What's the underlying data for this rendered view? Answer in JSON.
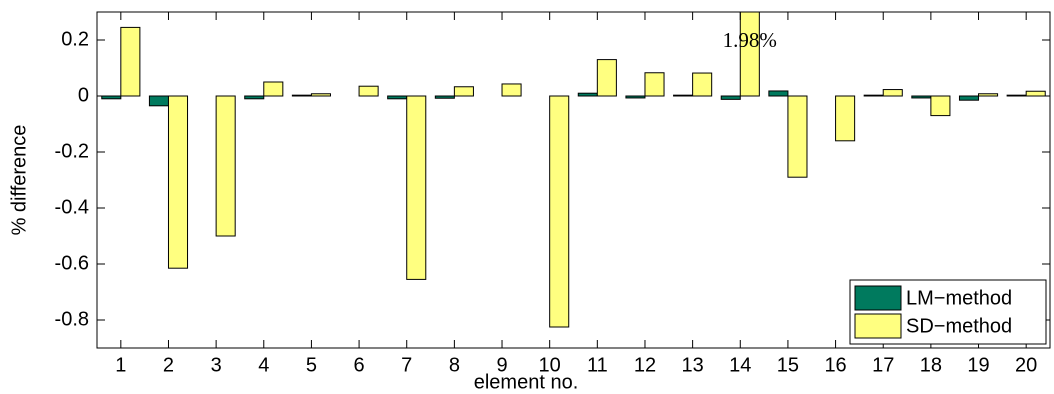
{
  "chart_data": {
    "type": "bar",
    "xlabel": "element no.",
    "ylabel": "% difference",
    "categories": [
      "1",
      "2",
      "3",
      "4",
      "5",
      "6",
      "7",
      "8",
      "9",
      "10",
      "11",
      "12",
      "13",
      "14",
      "15",
      "16",
      "17",
      "18",
      "19",
      "20"
    ],
    "series": [
      {
        "name": "LM−method",
        "color": "#007a5e",
        "values": [
          -0.01,
          -0.035,
          0,
          -0.01,
          0.003,
          0,
          -0.01,
          -0.008,
          0,
          0,
          0.01,
          -0.007,
          0.003,
          -0.012,
          0.018,
          0,
          0.003,
          -0.007,
          -0.015,
          0.003
        ]
      },
      {
        "name": "SD−method",
        "color": "#ffff80",
        "values": [
          0.245,
          -0.615,
          -0.5,
          0.05,
          0.008,
          0.035,
          -0.655,
          0.033,
          0.043,
          -0.825,
          0.13,
          0.083,
          0.082,
          1.98,
          -0.29,
          -0.16,
          0.023,
          -0.07,
          0.008,
          0.017
        ],
        "value_labels": [
          null,
          null,
          null,
          null,
          null,
          null,
          null,
          null,
          null,
          null,
          null,
          null,
          null,
          "1.98%",
          null,
          null,
          null,
          null,
          null,
          null
        ]
      }
    ],
    "ylim": [
      -0.9,
      0.3
    ],
    "yticks": [
      0.2,
      0,
      -0.2,
      -0.4,
      -0.6,
      -0.8
    ],
    "legend": "lower right",
    "grid": false
  }
}
